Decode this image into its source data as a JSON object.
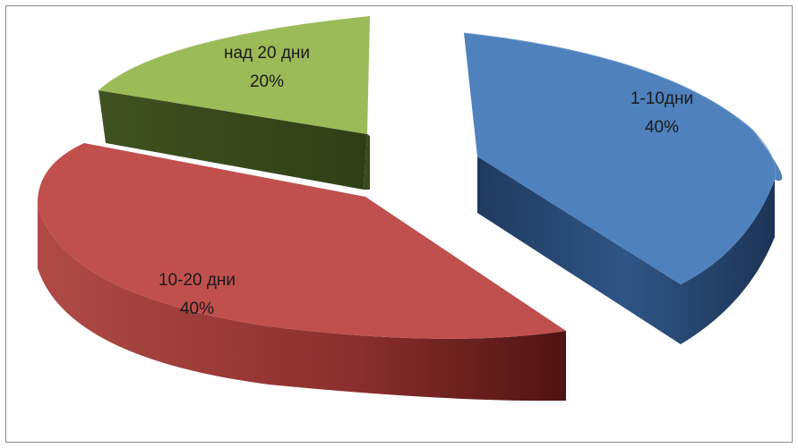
{
  "chart_data": {
    "type": "pie",
    "style": "3d-exploded",
    "title": "",
    "legend": "none",
    "slices": [
      {
        "category": "1-10дни",
        "value": 40,
        "label": "40%",
        "color": "#4f81bd",
        "side_color": "#2c4f7c"
      },
      {
        "category": "10-20 дни",
        "value": 40,
        "label": "40%",
        "color": "#c0504d",
        "side_color": "#7a2321"
      },
      {
        "category": "над 20 дни",
        "value": 20,
        "label": "20%",
        "color": "#9bbb59",
        "side_color": "#4d6226"
      }
    ]
  }
}
